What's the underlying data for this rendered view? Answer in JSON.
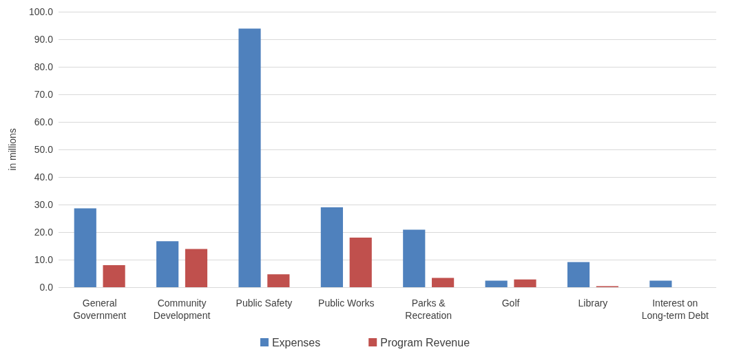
{
  "chart_data": {
    "type": "bar",
    "ylabel": "in millions",
    "categories": [
      "General\nGovernment",
      "Community\nDevelopment",
      "Public Safety",
      "Public Works",
      "Parks &\nRecreation",
      "Golf",
      "Library",
      "Interest on\nLong-term Debt"
    ],
    "series": [
      {
        "name": "Expenses",
        "color": "#4f81bd",
        "values": [
          28.6,
          16.7,
          93.9,
          29.0,
          20.9,
          2.4,
          9.1,
          2.4
        ]
      },
      {
        "name": "Program Revenue",
        "color": "#c0504d",
        "values": [
          8.0,
          13.9,
          4.7,
          18.0,
          3.4,
          2.8,
          0.4,
          null
        ]
      }
    ],
    "ylim": [
      0,
      100
    ],
    "yticks": [
      {
        "value": 0,
        "label": "0.0"
      },
      {
        "value": 10,
        "label": "10.0"
      },
      {
        "value": 20,
        "label": "20.0"
      },
      {
        "value": 30,
        "label": "30.0"
      },
      {
        "value": 40,
        "label": "40.0"
      },
      {
        "value": 50,
        "label": "50.0"
      },
      {
        "value": 60,
        "label": "60.0"
      },
      {
        "value": 70,
        "label": "70.0"
      },
      {
        "value": 80,
        "label": "80.0"
      },
      {
        "value": 90,
        "label": "90.0"
      },
      {
        "value": 100,
        "label": "100.0"
      }
    ],
    "grid": "y",
    "legend": "bottom"
  }
}
